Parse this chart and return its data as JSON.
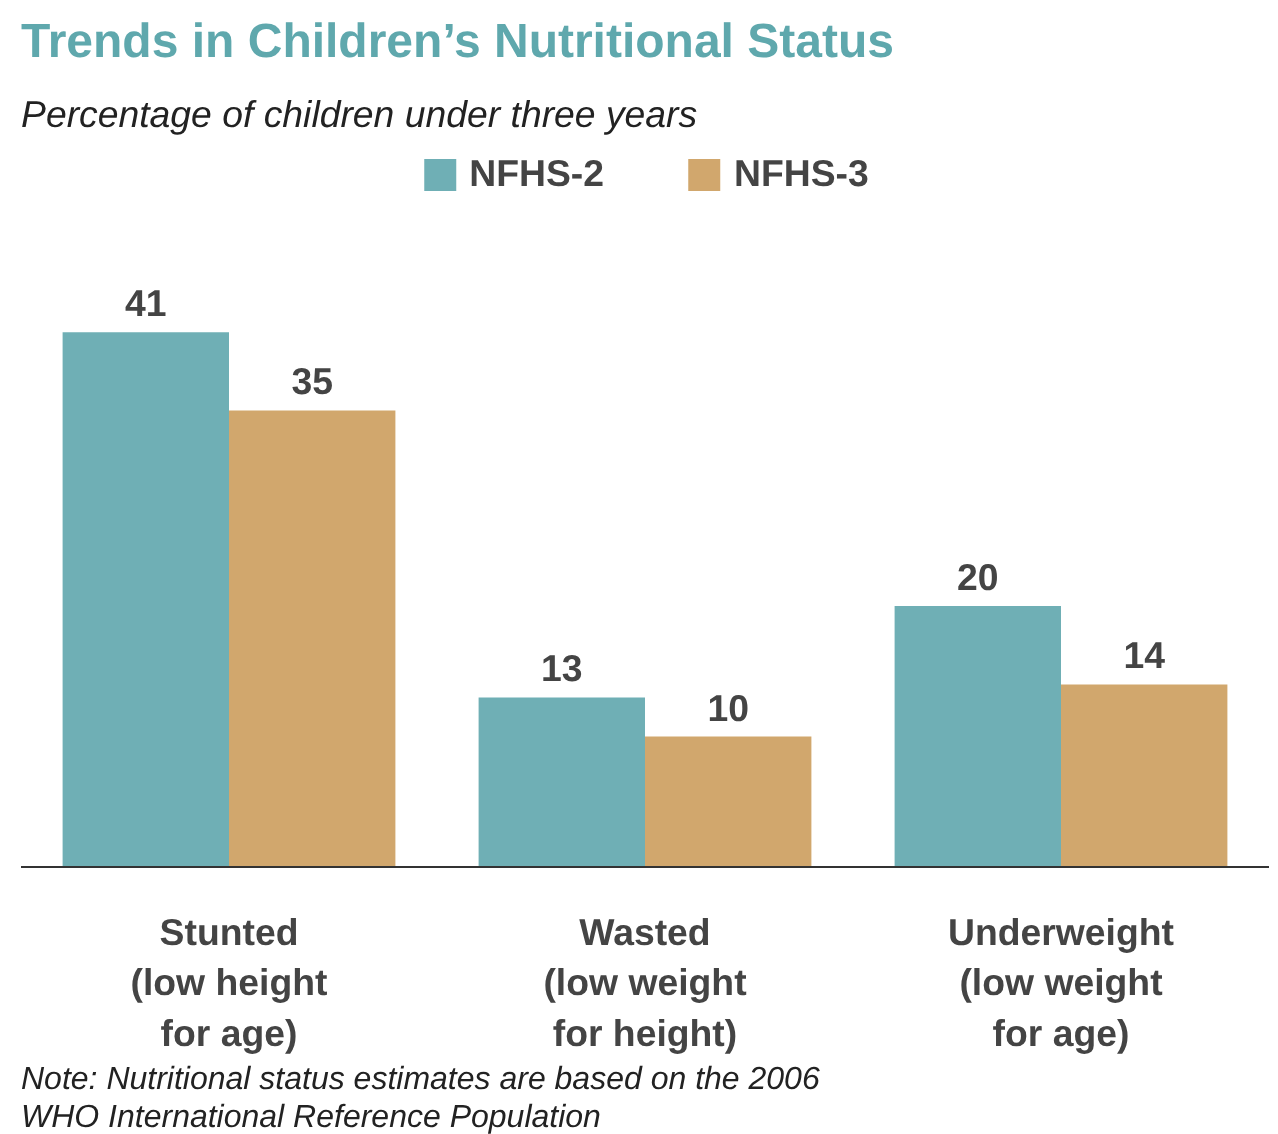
{
  "chart_data": {
    "type": "bar",
    "title": "Trends in Children’s Nutritional Status",
    "subtitle": "Percentage of children under three years",
    "categories": [
      "Stunted\n(low height\nfor age)",
      "Wasted\n(low weight\nfor height)",
      "Underweight\n(low weight\nfor age)"
    ],
    "series": [
      {
        "name": "NFHS-2",
        "color": "#6fafb5",
        "values": [
          41,
          13,
          20
        ]
      },
      {
        "name": "NFHS-3",
        "color": "#d1a76d",
        "values": [
          35,
          10,
          14
        ]
      }
    ],
    "data_labels": true,
    "legend": "top",
    "annotations": [
      "Note: Nutritional status estimates are based on the 2006\nWHO International Reference Population"
    ]
  }
}
